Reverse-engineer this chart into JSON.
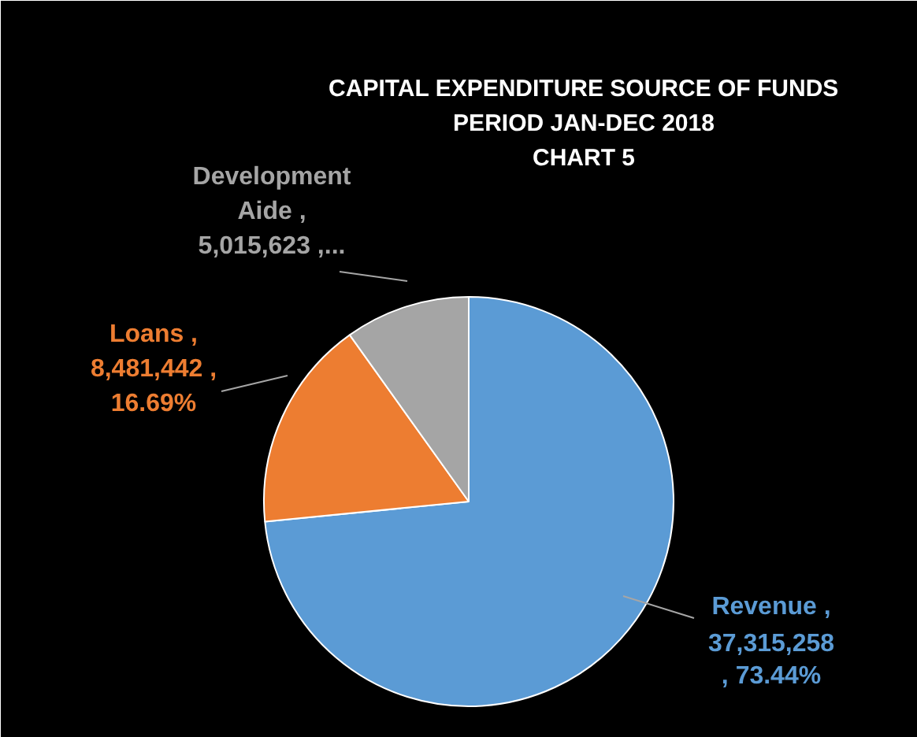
{
  "chart_data": {
    "type": "pie",
    "title": "CAPITAL EXPENDITURE SOURCE OF FUNDS\nPERIOD JAN-DEC 2018\nCHART 5",
    "categories": [
      "Revenue",
      "Loans",
      "Development Aide"
    ],
    "values": [
      37315258,
      8481442,
      5015623
    ],
    "colors": [
      "#5b9bd5",
      "#ed7d31",
      "#a5a5a5"
    ],
    "value_labels": [
      ",\n37,315,258\n, 73.44%",
      ",\n8,481,442 ,\n16.69%",
      ",\n5,015,623 ,..."
    ],
    "legend": false
  }
}
